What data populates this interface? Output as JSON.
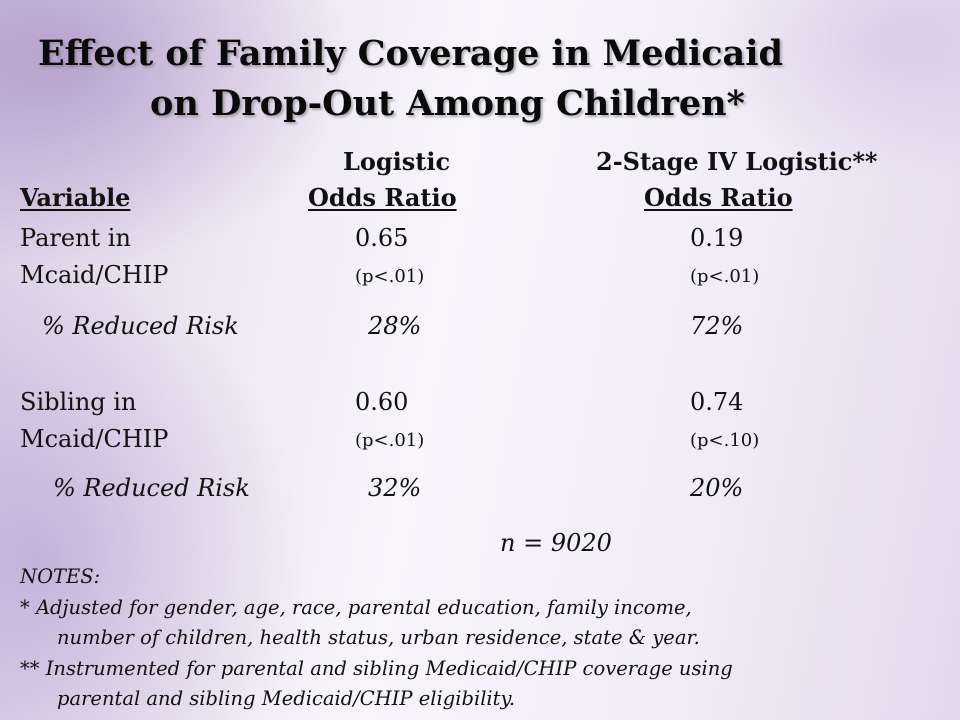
{
  "title": {
    "line1": "Effect of Family Coverage in Medicaid",
    "line2": "on Drop-Out Among Children*"
  },
  "columns": {
    "logistic_top": "Logistic",
    "iv_top": "2-Stage IV Logistic**",
    "variable": "Variable ",
    "logistic_bottom": "Odds Ratio ",
    "iv_bottom": "Odds Ratio"
  },
  "rows": [
    {
      "label_line1": "Parent in",
      "label_line2": "Mcaid/CHIP",
      "logistic_or": "0.65",
      "logistic_p": "(p<.01)",
      "iv_or": "0.19",
      "iv_p": "(p<.01)",
      "risk_label": "% Reduced Risk",
      "logistic_risk": "28%",
      "iv_risk": "72%"
    },
    {
      "label_line1": "Sibling in",
      "label_line2": "Mcaid/CHIP",
      "logistic_or": "0.60",
      "logistic_p": "(p<.01)",
      "iv_or": "0.74",
      "iv_p": "(p<.10)",
      "risk_label": "% Reduced Risk",
      "logistic_risk": "32%",
      "iv_risk": "20%"
    }
  ],
  "sample_size": "n = 9020",
  "notes": {
    "heading": "NOTES:",
    "note1_line1": "* Adjusted for gender, age, race, parental education, family income,",
    "note1_line2": "number of children, health status, urban residence, state & year.",
    "note2_line1": "** Instrumented for parental and sibling Medicaid/CHIP coverage using",
    "note2_line2": "parental and sibling Medicaid/CHIP eligibility."
  }
}
